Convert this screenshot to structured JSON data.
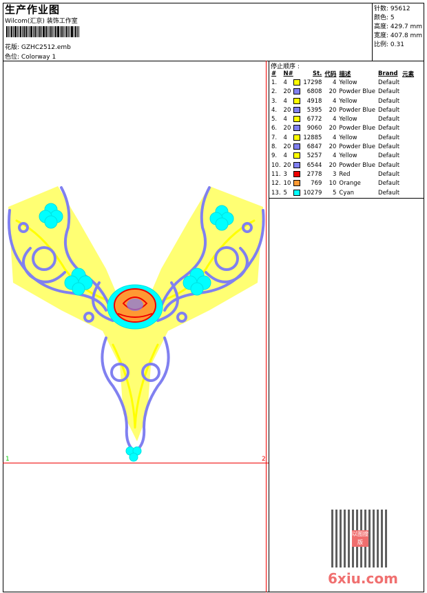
{
  "header": {
    "title": "生产作业图",
    "company": "Wilcom(汇京) 装饰工作室",
    "design_label": "花版:",
    "design_value": "GZHC2512.emb",
    "colorway_label": "色位:",
    "colorway_value": "Colorway 1"
  },
  "stats": [
    {
      "label": "针数:",
      "value": "95612"
    },
    {
      "label": "颜色:",
      "value": "5"
    },
    {
      "label": "高度:",
      "value": "429.7 mm"
    },
    {
      "label": "宽度:",
      "value": "407.8 mm"
    },
    {
      "label": "比例:",
      "value": "0.31"
    }
  ],
  "stop_sequence": {
    "title": "停止顺序 :",
    "columns": [
      "#",
      "N#",
      "St.",
      "代码",
      "描述",
      "Brand",
      "元素"
    ],
    "rows": [
      {
        "idx": "1.",
        "n": "4",
        "color": "#ffff00",
        "st": "17298",
        "code": "4",
        "desc": "Yellow",
        "brand": "Default"
      },
      {
        "idx": "2.",
        "n": "20",
        "color": "#8080f0",
        "st": "6808",
        "code": "20",
        "desc": "Powder Blue",
        "brand": "Default"
      },
      {
        "idx": "3.",
        "n": "4",
        "color": "#ffff00",
        "st": "4918",
        "code": "4",
        "desc": "Yellow",
        "brand": "Default"
      },
      {
        "idx": "4.",
        "n": "20",
        "color": "#8080f0",
        "st": "5395",
        "code": "20",
        "desc": "Powder Blue",
        "brand": "Default"
      },
      {
        "idx": "5.",
        "n": "4",
        "color": "#ffff00",
        "st": "6772",
        "code": "4",
        "desc": "Yellow",
        "brand": "Default"
      },
      {
        "idx": "6.",
        "n": "20",
        "color": "#8080f0",
        "st": "9060",
        "code": "20",
        "desc": "Powder Blue",
        "brand": "Default"
      },
      {
        "idx": "7.",
        "n": "4",
        "color": "#ffff00",
        "st": "12885",
        "code": "4",
        "desc": "Yellow",
        "brand": "Default"
      },
      {
        "idx": "8.",
        "n": "20",
        "color": "#8080f0",
        "st": "6847",
        "code": "20",
        "desc": "Powder Blue",
        "brand": "Default"
      },
      {
        "idx": "9.",
        "n": "4",
        "color": "#ffff00",
        "st": "5257",
        "code": "4",
        "desc": "Yellow",
        "brand": "Default"
      },
      {
        "idx": "10.",
        "n": "20",
        "color": "#8080f0",
        "st": "6544",
        "code": "20",
        "desc": "Powder Blue",
        "brand": "Default"
      },
      {
        "idx": "11.",
        "n": "3",
        "color": "#ee0000",
        "st": "2778",
        "code": "3",
        "desc": "Red",
        "brand": "Default"
      },
      {
        "idx": "12.",
        "n": "10",
        "color": "#ff9933",
        "st": "769",
        "code": "10",
        "desc": "Orange",
        "brand": "Default"
      },
      {
        "idx": "13.",
        "n": "5",
        "color": "#00ffff",
        "st": "10279",
        "code": "5",
        "desc": "Cyan",
        "brand": "Default"
      }
    ]
  },
  "canvas": {
    "corner_left": "1",
    "corner_right": "2"
  },
  "watermark": {
    "text": "6xiu.com",
    "seal": "以图搜版"
  }
}
